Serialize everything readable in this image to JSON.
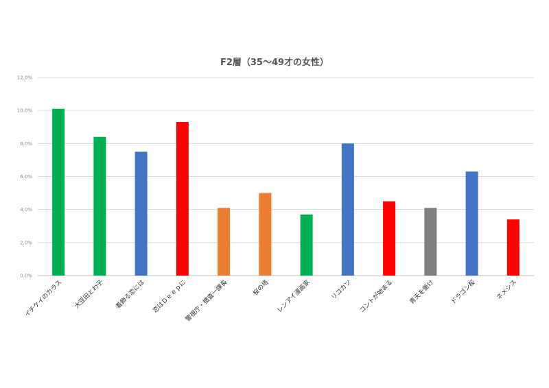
{
  "chart_data": {
    "type": "bar",
    "title": "F2層（35～49才の女性）",
    "xlabel": "",
    "ylabel": "",
    "ylim": [
      0,
      12
    ],
    "yticks": [
      "0.0%",
      "2.0%",
      "4.0%",
      "6.0%",
      "8.0%",
      "10.0%",
      "12.0%"
    ],
    "grid": true,
    "legend": "none",
    "categories": [
      "イチケイのカラス",
      "大豆田とわ子",
      "着飾る恋には",
      "恋はＤｅｅｐに",
      "警視庁・捜査一課長",
      "桜の塔",
      "レンアイ漫画家",
      "リコカツ",
      "コントが始まる",
      "青天を衝け",
      "ドラゴン桜",
      "ネメシス"
    ],
    "values": [
      10.1,
      8.4,
      7.5,
      9.3,
      4.1,
      5.0,
      3.7,
      8.0,
      4.5,
      4.1,
      6.3,
      3.4
    ],
    "bar_colors": [
      "#00b050",
      "#00b050",
      "#4472c4",
      "#ff0000",
      "#ed7d31",
      "#ed7d31",
      "#00b050",
      "#4472c4",
      "#ff0000",
      "#808080",
      "#4472c4",
      "#ff0000"
    ]
  }
}
